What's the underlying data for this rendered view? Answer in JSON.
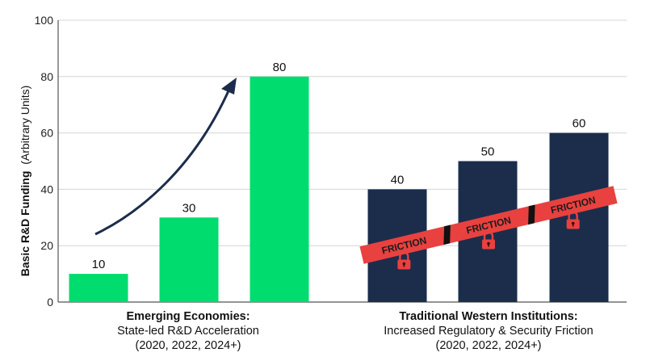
{
  "chart_data": {
    "type": "bar",
    "ylabel_bold": "Basic R&D Funding",
    "ylabel_rest": "(Arbitrary Units)",
    "ylim": [
      0,
      100
    ],
    "yticks": [
      0,
      20,
      40,
      60,
      80,
      100
    ],
    "grid": true,
    "groups": [
      {
        "title": "Emerging Economies:",
        "subtitle": "State-led R&D Acceleration",
        "years": "(2020, 2022, 2024+)",
        "color": "#00dc6e",
        "values": [
          10,
          30,
          80
        ]
      },
      {
        "title": "Traditional Western Institutions:",
        "subtitle": "Increased Regulatory & Security Friction",
        "years": "(2020, 2022, 2024+)",
        "color": "#1b2d4b",
        "values": [
          40,
          50,
          60
        ]
      }
    ],
    "annotations": {
      "arrow": "growth-arrow",
      "friction_band": {
        "label": "FRICTION",
        "color": "#e8413f",
        "lock_icon": "padlock-icon",
        "segments": 3
      }
    }
  }
}
